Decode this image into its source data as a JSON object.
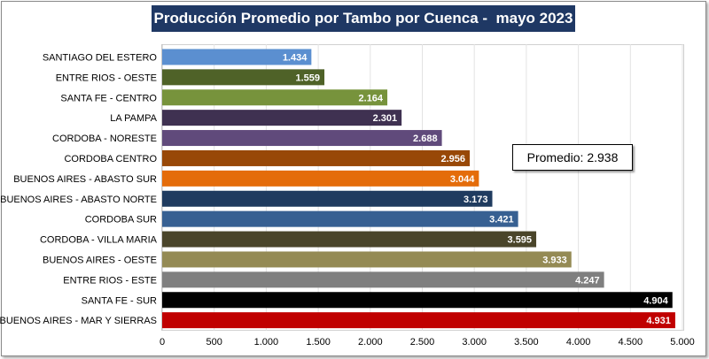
{
  "chart_data": {
    "type": "bar",
    "orientation": "horizontal",
    "title": "Producción Promedio por Tambo por Cuenca -  mayo 2023",
    "categories": [
      "SANTIAGO DEL ESTERO",
      "ENTRE RIOS - OESTE",
      "SANTA FE - CENTRO",
      "LA PAMPA",
      "CORDOBA - NORESTE",
      "CORDOBA CENTRO",
      "BUENOS AIRES - ABASTO SUR",
      "BUENOS AIRES - ABASTO NORTE",
      "CORDOBA SUR",
      "CORDOBA - VILLA MARIA",
      "BUENOS AIRES - OESTE",
      "ENTRE RIOS - ESTE",
      "SANTA FE - SUR",
      "BUENOS AIRES - MAR Y SIERRAS"
    ],
    "values": [
      1434,
      1559,
      2164,
      2301,
      2688,
      2956,
      3044,
      3173,
      3421,
      3595,
      3933,
      4247,
      4904,
      4931
    ],
    "value_labels": [
      "1.434",
      "1.559",
      "2.164",
      "2.301",
      "2.688",
      "2.956",
      "3.044",
      "3.173",
      "3.421",
      "3.595",
      "3.933",
      "4.247",
      "4.904",
      "4.931"
    ],
    "colors": [
      "#5b8fd0",
      "#4f6228",
      "#77933c",
      "#3f3151",
      "#604a7b",
      "#984807",
      "#e46c0a",
      "#1f3b5f",
      "#376092",
      "#4a452a",
      "#948a54",
      "#7f7f7f",
      "#000000",
      "#c00000"
    ],
    "xlim": [
      0,
      5000
    ],
    "xticks": [
      0,
      500,
      1000,
      1500,
      2000,
      2500,
      3000,
      3500,
      4000,
      4500,
      5000
    ],
    "xtick_labels": [
      "0",
      "500",
      "1.000",
      "1.500",
      "2.000",
      "2.500",
      "3.000",
      "3.500",
      "4.000",
      "4.500",
      "5.000"
    ],
    "xlabel": "",
    "ylabel": "",
    "grid": true,
    "annotation": "Promedio: 2.938"
  }
}
